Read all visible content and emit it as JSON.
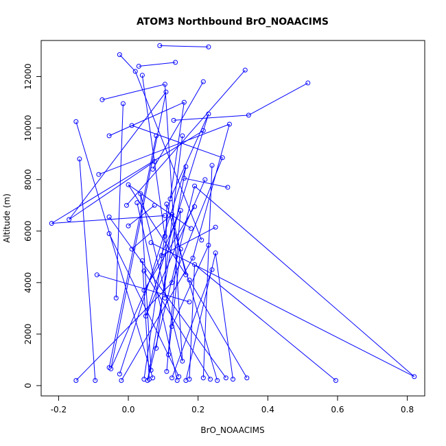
{
  "chart_data": {
    "type": "line",
    "title": "ATOM3 Northbound BrO_NOAACIMS",
    "xlabel": "BrO_NOAACIMS",
    "ylabel": "Altitude (m)",
    "xlim": [
      -0.25,
      0.85
    ],
    "ylim": [
      -400,
      13400
    ],
    "xticks": [
      -0.2,
      0.0,
      0.2,
      0.4,
      0.6,
      0.8
    ],
    "xtick_labels": [
      "-0.2",
      "0.0",
      "0.2",
      "0.4",
      "0.6",
      "0.8"
    ],
    "yticks": [
      0,
      2000,
      4000,
      6000,
      8000,
      10000,
      12000
    ],
    "ytick_labels": [
      "0",
      "2000",
      "4000",
      "6000",
      "8000",
      "10000",
      "12000"
    ],
    "grid": false,
    "series": [
      {
        "color": "#0000ff",
        "marker": "open-circle",
        "points": [
          [
            0.09,
            13200
          ],
          [
            0.23,
            13150
          ],
          [
            0.135,
            12550
          ],
          [
            0.03,
            12400
          ],
          [
            -0.025,
            12850
          ],
          [
            0.02,
            12200
          ],
          [
            0.04,
            12050
          ],
          [
            0.335,
            12250
          ],
          [
            0.105,
            11700
          ],
          [
            -0.075,
            11100
          ],
          [
            0.215,
            11800
          ],
          [
            0.515,
            11750
          ],
          [
            0.108,
            11400
          ],
          [
            -0.015,
            10950
          ],
          [
            0.16,
            11000
          ],
          [
            0.23,
            10550
          ],
          [
            0.345,
            10500
          ],
          [
            0.13,
            10300
          ],
          [
            0.01,
            10100
          ],
          [
            0.29,
            10150
          ],
          [
            -0.15,
            10250
          ],
          [
            -0.055,
            9700
          ],
          [
            0.215,
            9900
          ],
          [
            0.08,
            9700
          ],
          [
            0.155,
            9700
          ],
          [
            -0.14,
            8800
          ],
          [
            0.075,
            8700
          ],
          [
            0.27,
            8850
          ],
          [
            0.165,
            8500
          ],
          [
            -0.085,
            8200
          ],
          [
            0.24,
            8550
          ],
          [
            0.07,
            8400
          ],
          [
            0.16,
            8050
          ],
          [
            0.22,
            8000
          ],
          [
            0.285,
            7700
          ],
          [
            0.0,
            7800
          ],
          [
            0.19,
            7750
          ],
          [
            0.035,
            7450
          ],
          [
            0.12,
            7250
          ],
          [
            0.025,
            7100
          ],
          [
            -0.005,
            7000
          ],
          [
            0.11,
            7050
          ],
          [
            0.075,
            7000
          ],
          [
            0.19,
            6950
          ],
          [
            0.15,
            6800
          ],
          [
            0.125,
            6650
          ],
          [
            -0.055,
            6550
          ],
          [
            -0.17,
            6450
          ],
          [
            0.105,
            6600
          ],
          [
            -0.22,
            6300
          ],
          [
            0.0,
            6200
          ],
          [
            0.18,
            6100
          ],
          [
            0.25,
            6150
          ],
          [
            -0.055,
            5900
          ],
          [
            0.105,
            5800
          ],
          [
            0.065,
            5550
          ],
          [
            0.21,
            5650
          ],
          [
            0.23,
            5450
          ],
          [
            0.01,
            5300
          ],
          [
            0.15,
            5300
          ],
          [
            0.25,
            5150
          ],
          [
            0.095,
            5050
          ],
          [
            0.185,
            4950
          ],
          [
            0.04,
            4850
          ],
          [
            0.19,
            4700
          ],
          [
            0.24,
            4500
          ],
          [
            0.165,
            4300
          ],
          [
            0.045,
            4450
          ],
          [
            -0.09,
            4300
          ],
          [
            0.125,
            4000
          ],
          [
            0.175,
            4100
          ],
          [
            0.045,
            3700
          ],
          [
            -0.035,
            3400
          ],
          [
            0.175,
            3250
          ],
          [
            0.105,
            3400
          ],
          [
            0.05,
            2700
          ],
          [
            0.125,
            2300
          ],
          [
            0.08,
            1450
          ],
          [
            0.115,
            1200
          ],
          [
            0.155,
            950
          ],
          [
            -0.055,
            700
          ],
          [
            -0.05,
            650
          ],
          [
            0.065,
            600
          ],
          [
            -0.025,
            450
          ],
          [
            0.11,
            550
          ],
          [
            -0.15,
            200
          ],
          [
            -0.095,
            200
          ],
          [
            -0.02,
            200
          ],
          [
            0.045,
            250
          ],
          [
            0.07,
            300
          ],
          [
            0.125,
            300
          ],
          [
            0.145,
            350
          ],
          [
            0.175,
            250
          ],
          [
            0.215,
            300
          ],
          [
            0.235,
            250
          ],
          [
            0.28,
            300
          ],
          [
            0.3,
            250
          ],
          [
            0.34,
            300
          ],
          [
            0.595,
            200
          ],
          [
            0.82,
            350
          ],
          [
            0.055,
            200
          ],
          [
            0.06,
            250
          ],
          [
            0.165,
            200
          ],
          [
            0.14,
            200
          ],
          [
            0.255,
            200
          ]
        ],
        "segments": [
          [
            0,
            1
          ],
          [
            3,
            2
          ],
          [
            4,
            5
          ],
          [
            6,
            54
          ],
          [
            9,
            8
          ],
          [
            5,
            56
          ],
          [
            7,
            40
          ],
          [
            11,
            16
          ],
          [
            16,
            17
          ],
          [
            18,
            27
          ],
          [
            15,
            38
          ],
          [
            19,
            29
          ],
          [
            21,
            14
          ],
          [
            22,
            49
          ],
          [
            49,
            48
          ],
          [
            47,
            26
          ],
          [
            47,
            12
          ],
          [
            20,
            89
          ],
          [
            25,
            86
          ],
          [
            10,
            31
          ],
          [
            13,
            72
          ],
          [
            28,
            100
          ],
          [
            30,
            93
          ],
          [
            32,
            34
          ],
          [
            35,
            51
          ],
          [
            36,
            100
          ],
          [
            37,
            82
          ],
          [
            39,
            103
          ],
          [
            41,
            104
          ],
          [
            43,
            71
          ],
          [
            44,
            84
          ],
          [
            45,
            58
          ],
          [
            46,
            95
          ],
          [
            50,
            42
          ],
          [
            52,
            61
          ],
          [
            53,
            91
          ],
          [
            55,
            99
          ],
          [
            57,
            76
          ],
          [
            59,
            78
          ],
          [
            60,
            102
          ],
          [
            62,
            87
          ],
          [
            63,
            101
          ],
          [
            64,
            98
          ],
          [
            65,
            90
          ],
          [
            66,
            35
          ],
          [
            67,
            94
          ],
          [
            68,
            73
          ],
          [
            69,
            85
          ],
          [
            70,
            97
          ],
          [
            74,
            41
          ],
          [
            75,
            33
          ],
          [
            77,
            24
          ],
          [
            79,
            37
          ],
          [
            80,
            23
          ],
          [
            81,
            44
          ],
          [
            83,
            28
          ],
          [
            88,
            14
          ],
          [
            92,
            64
          ],
          [
            96,
            60
          ],
          [
            36,
            99
          ],
          [
            12,
            81
          ],
          [
            15,
            75
          ],
          [
            27,
            69
          ],
          [
            45,
            66
          ],
          [
            19,
            62
          ],
          [
            8,
            79
          ]
        ]
      }
    ]
  }
}
